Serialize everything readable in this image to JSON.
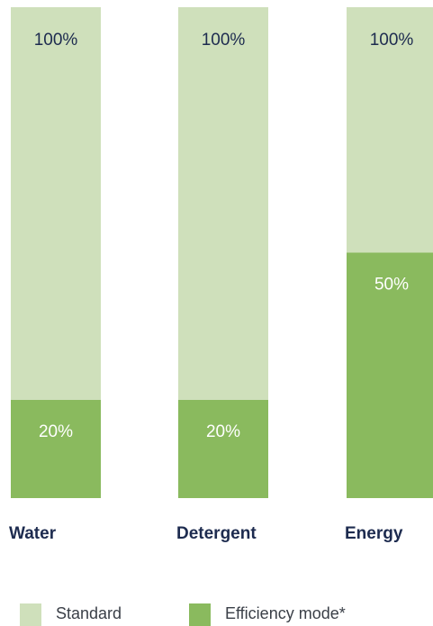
{
  "colors": {
    "standard": "#cfe0bb",
    "efficiency": "#8aba5e",
    "label_dark": "#1d2b4f",
    "label_light": "#ffffff",
    "category_text": "#1d2b4f"
  },
  "legend": {
    "standard_label": "Standard",
    "efficiency_label": "Efficiency mode*"
  },
  "chart_data": {
    "type": "bar",
    "stacked": "overlay",
    "categories": [
      "Water",
      "Detergent",
      "Energy"
    ],
    "series": [
      {
        "name": "Standard",
        "values": [
          100,
          100,
          100
        ],
        "labels": [
          "100%",
          "100%",
          "100%"
        ]
      },
      {
        "name": "Efficiency mode*",
        "values": [
          20,
          20,
          50
        ],
        "labels": [
          "20%",
          "20%",
          "50%"
        ]
      }
    ],
    "ylim": [
      0,
      100
    ],
    "grid": false,
    "legend_position": "bottom-left"
  }
}
